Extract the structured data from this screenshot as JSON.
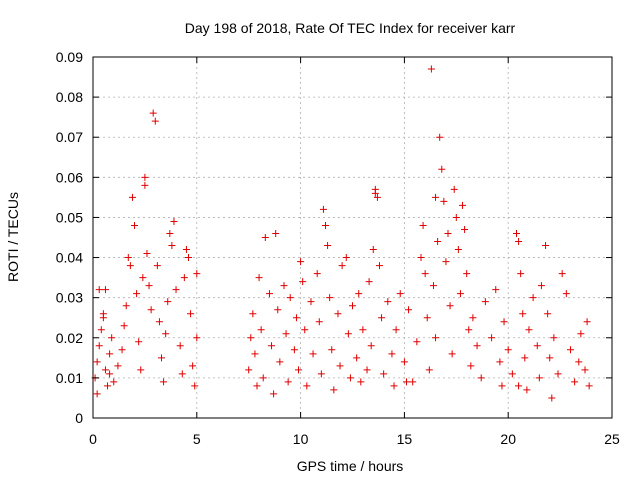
{
  "chart_data": {
    "type": "scatter",
    "title": "Day 198 of 2018, Rate Of TEC Index for receiver karr",
    "xlabel": "GPS time / hours",
    "ylabel": "ROTI / TECUs",
    "xlim": [
      0,
      25
    ],
    "ylim": [
      0,
      0.09
    ],
    "xticks": [
      "0",
      "5",
      "10",
      "15",
      "20",
      "25"
    ],
    "yticks": [
      "0",
      "0.01",
      "0.02",
      "0.03",
      "0.04",
      "0.05",
      "0.06",
      "0.07",
      "0.08",
      "0.09"
    ],
    "grid": true,
    "marker": "plus",
    "color": "#e00000",
    "series": [
      {
        "name": "ROTI",
        "points": [
          [
            0.1,
            0.01
          ],
          [
            0.2,
            0.014
          ],
          [
            0.3,
            0.018
          ],
          [
            0.4,
            0.022
          ],
          [
            0.5,
            0.026
          ],
          [
            0.6,
            0.012
          ],
          [
            0.7,
            0.008
          ],
          [
            0.8,
            0.016
          ],
          [
            0.9,
            0.02
          ],
          [
            0.3,
            0.032
          ],
          [
            0.6,
            0.032
          ],
          [
            0.5,
            0.025
          ],
          [
            0.2,
            0.006
          ],
          [
            0.8,
            0.011
          ],
          [
            1.0,
            0.009
          ],
          [
            1.2,
            0.013
          ],
          [
            1.4,
            0.017
          ],
          [
            1.5,
            0.023
          ],
          [
            1.6,
            0.028
          ],
          [
            1.7,
            0.04
          ],
          [
            1.8,
            0.038
          ],
          [
            1.9,
            0.055
          ],
          [
            2.0,
            0.048
          ],
          [
            2.1,
            0.031
          ],
          [
            2.2,
            0.019
          ],
          [
            2.3,
            0.012
          ],
          [
            2.4,
            0.035
          ],
          [
            2.5,
            0.06
          ],
          [
            2.5,
            0.058
          ],
          [
            2.6,
            0.041
          ],
          [
            2.7,
            0.033
          ],
          [
            2.8,
            0.027
          ],
          [
            2.9,
            0.076
          ],
          [
            3.0,
            0.074
          ],
          [
            3.1,
            0.038
          ],
          [
            3.2,
            0.024
          ],
          [
            3.3,
            0.015
          ],
          [
            3.4,
            0.009
          ],
          [
            3.5,
            0.021
          ],
          [
            3.7,
            0.046
          ],
          [
            3.8,
            0.043
          ],
          [
            3.9,
            0.049
          ],
          [
            4.0,
            0.032
          ],
          [
            4.2,
            0.018
          ],
          [
            4.4,
            0.035
          ],
          [
            4.5,
            0.042
          ],
          [
            4.6,
            0.04
          ],
          [
            4.7,
            0.026
          ],
          [
            4.8,
            0.013
          ],
          [
            4.9,
            0.008
          ],
          [
            5.0,
            0.036
          ],
          [
            5.0,
            0.02
          ],
          [
            4.3,
            0.011
          ],
          [
            3.6,
            0.029
          ],
          [
            7.5,
            0.012
          ],
          [
            7.6,
            0.02
          ],
          [
            7.7,
            0.026
          ],
          [
            7.8,
            0.016
          ],
          [
            7.9,
            0.008
          ],
          [
            8.0,
            0.035
          ],
          [
            8.1,
            0.022
          ],
          [
            8.2,
            0.01
          ],
          [
            8.3,
            0.045
          ],
          [
            8.5,
            0.031
          ],
          [
            8.6,
            0.018
          ],
          [
            8.7,
            0.006
          ],
          [
            8.8,
            0.046
          ],
          [
            8.9,
            0.027
          ],
          [
            9.0,
            0.014
          ],
          [
            9.2,
            0.033
          ],
          [
            9.3,
            0.021
          ],
          [
            9.4,
            0.009
          ],
          [
            9.5,
            0.03
          ],
          [
            9.7,
            0.017
          ],
          [
            9.8,
            0.025
          ],
          [
            9.9,
            0.012
          ],
          [
            10.0,
            0.039
          ],
          [
            10.1,
            0.034
          ],
          [
            10.2,
            0.022
          ],
          [
            10.3,
            0.008
          ],
          [
            10.5,
            0.029
          ],
          [
            10.6,
            0.016
          ],
          [
            10.8,
            0.036
          ],
          [
            10.9,
            0.024
          ],
          [
            11.0,
            0.011
          ],
          [
            11.1,
            0.052
          ],
          [
            11.2,
            0.048
          ],
          [
            11.3,
            0.043
          ],
          [
            11.4,
            0.03
          ],
          [
            11.5,
            0.017
          ],
          [
            11.6,
            0.007
          ],
          [
            11.8,
            0.026
          ],
          [
            11.9,
            0.013
          ],
          [
            12.0,
            0.038
          ],
          [
            12.2,
            0.04
          ],
          [
            12.3,
            0.021
          ],
          [
            12.4,
            0.01
          ],
          [
            12.5,
            0.028
          ],
          [
            12.7,
            0.015
          ],
          [
            12.8,
            0.031
          ],
          [
            12.9,
            0.009
          ],
          [
            13.0,
            0.022
          ],
          [
            13.2,
            0.012
          ],
          [
            13.3,
            0.034
          ],
          [
            13.4,
            0.018
          ],
          [
            13.5,
            0.042
          ],
          [
            13.6,
            0.056
          ],
          [
            13.6,
            0.057
          ],
          [
            13.7,
            0.055
          ],
          [
            13.8,
            0.038
          ],
          [
            13.9,
            0.025
          ],
          [
            14.0,
            0.011
          ],
          [
            14.2,
            0.029
          ],
          [
            14.4,
            0.016
          ],
          [
            14.5,
            0.008
          ],
          [
            14.6,
            0.022
          ],
          [
            14.8,
            0.031
          ],
          [
            15.0,
            0.014
          ],
          [
            15.2,
            0.027
          ],
          [
            15.4,
            0.009
          ],
          [
            15.6,
            0.019
          ],
          [
            15.8,
            0.04
          ],
          [
            15.9,
            0.048
          ],
          [
            16.0,
            0.036
          ],
          [
            16.1,
            0.025
          ],
          [
            16.2,
            0.012
          ],
          [
            16.3,
            0.087
          ],
          [
            16.4,
            0.033
          ],
          [
            16.5,
            0.02
          ],
          [
            16.6,
            0.044
          ],
          [
            16.7,
            0.07
          ],
          [
            16.8,
            0.062
          ],
          [
            16.9,
            0.054
          ],
          [
            17.0,
            0.039
          ],
          [
            17.1,
            0.046
          ],
          [
            17.2,
            0.028
          ],
          [
            17.3,
            0.016
          ],
          [
            17.4,
            0.057
          ],
          [
            17.5,
            0.05
          ],
          [
            17.6,
            0.042
          ],
          [
            17.7,
            0.031
          ],
          [
            17.8,
            0.053
          ],
          [
            17.9,
            0.047
          ],
          [
            18.0,
            0.036
          ],
          [
            18.1,
            0.022
          ],
          [
            18.2,
            0.013
          ],
          [
            18.3,
            0.025
          ],
          [
            18.5,
            0.018
          ],
          [
            18.7,
            0.01
          ],
          [
            18.9,
            0.029
          ],
          [
            19.2,
            0.02
          ],
          [
            19.4,
            0.032
          ],
          [
            19.6,
            0.014
          ],
          [
            19.7,
            0.008
          ],
          [
            19.8,
            0.024
          ],
          [
            20.0,
            0.017
          ],
          [
            20.2,
            0.011
          ],
          [
            20.4,
            0.046
          ],
          [
            20.5,
            0.044
          ],
          [
            20.6,
            0.036
          ],
          [
            20.7,
            0.026
          ],
          [
            20.8,
            0.015
          ],
          [
            20.9,
            0.007
          ],
          [
            21.0,
            0.022
          ],
          [
            21.2,
            0.03
          ],
          [
            21.4,
            0.018
          ],
          [
            21.5,
            0.01
          ],
          [
            21.6,
            0.033
          ],
          [
            21.8,
            0.043
          ],
          [
            21.9,
            0.026
          ],
          [
            22.0,
            0.015
          ],
          [
            22.1,
            0.005
          ],
          [
            22.2,
            0.02
          ],
          [
            22.4,
            0.011
          ],
          [
            22.6,
            0.036
          ],
          [
            22.8,
            0.031
          ],
          [
            23.0,
            0.017
          ],
          [
            23.2,
            0.009
          ],
          [
            23.4,
            0.014
          ],
          [
            23.5,
            0.021
          ],
          [
            23.7,
            0.012
          ],
          [
            23.8,
            0.024
          ],
          [
            23.9,
            0.008
          ],
          [
            16.5,
            0.055
          ],
          [
            20.5,
            0.008
          ],
          [
            15.1,
            0.009
          ]
        ]
      }
    ]
  }
}
